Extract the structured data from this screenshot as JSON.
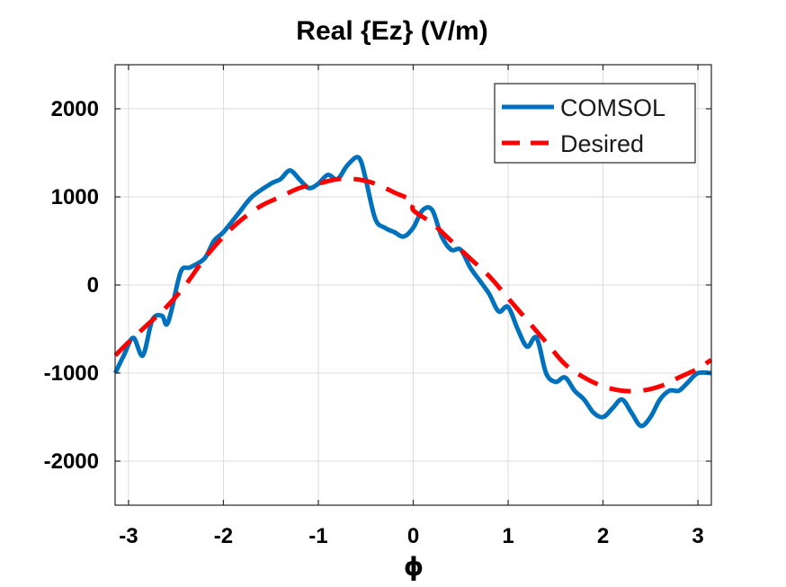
{
  "chart_data": {
    "type": "line",
    "title": "Real {Ez} (V/m)",
    "xlabel": "ϕ",
    "ylabel": "",
    "xlim": [
      -3.14159,
      3.14159
    ],
    "ylim": [
      -2500,
      2500
    ],
    "xticks": [
      -3,
      -2,
      -1,
      0,
      1,
      2,
      3
    ],
    "xtick_labels": [
      "-3",
      "-2",
      "-1",
      "0",
      "1",
      "2",
      "3"
    ],
    "yticks": [
      -2000,
      -1000,
      0,
      1000,
      2000
    ],
    "ytick_labels": [
      "-2000",
      "-1000",
      "0",
      "1000",
      "2000"
    ],
    "grid": true,
    "legend": {
      "placement": "top-right",
      "entries": [
        "COMSOL",
        "Desired"
      ]
    },
    "series": [
      {
        "name": "COMSOL",
        "color": "#0072BD",
        "style": "solid",
        "x": [
          -3.14,
          -3.05,
          -2.95,
          -2.85,
          -2.75,
          -2.65,
          -2.6,
          -2.55,
          -2.45,
          -2.35,
          -2.2,
          -2.1,
          -2.0,
          -1.85,
          -1.7,
          -1.5,
          -1.4,
          -1.3,
          -1.2,
          -1.1,
          -1.0,
          -0.9,
          -0.8,
          -0.7,
          -0.6,
          -0.55,
          -0.5,
          -0.4,
          -0.3,
          -0.2,
          -0.1,
          0.0,
          0.1,
          0.2,
          0.3,
          0.4,
          0.5,
          0.6,
          0.7,
          0.8,
          0.9,
          1.0,
          1.1,
          1.2,
          1.3,
          1.4,
          1.5,
          1.6,
          1.7,
          1.8,
          1.9,
          2.0,
          2.1,
          2.2,
          2.3,
          2.4,
          2.5,
          2.6,
          2.7,
          2.8,
          2.9,
          3.0,
          3.14
        ],
        "y": [
          -1000,
          -800,
          -600,
          -800,
          -400,
          -350,
          -450,
          -300,
          150,
          200,
          300,
          500,
          600,
          800,
          1000,
          1150,
          1200,
          1300,
          1200,
          1100,
          1150,
          1250,
          1200,
          1350,
          1450,
          1400,
          1200,
          750,
          650,
          600,
          550,
          650,
          850,
          850,
          550,
          400,
          400,
          200,
          50,
          -100,
          -300,
          -250,
          -500,
          -700,
          -600,
          -1000,
          -1100,
          -1050,
          -1200,
          -1300,
          -1450,
          -1500,
          -1400,
          -1300,
          -1450,
          -1600,
          -1500,
          -1300,
          -1200,
          -1200,
          -1100,
          -1000,
          -1000
        ]
      },
      {
        "name": "Desired",
        "color": "#FF0000",
        "style": "dashed",
        "x": [
          -3.14,
          -3.0,
          -2.8,
          -2.6,
          -2.4,
          -2.2,
          -2.0,
          -1.8,
          -1.6,
          -1.4,
          -1.2,
          -1.0,
          -0.8,
          -0.6,
          -0.4,
          -0.2,
          -0.001,
          0.0,
          0.2,
          0.4,
          0.6,
          0.8,
          1.0,
          1.2,
          1.4,
          1.6,
          1.8,
          2.0,
          2.2,
          2.4,
          2.6,
          2.8,
          3.0,
          3.14
        ],
        "y": [
          -800,
          -650,
          -450,
          -250,
          0,
          300,
          550,
          750,
          900,
          1000,
          1100,
          1150,
          1200,
          1200,
          1150,
          1050,
          950,
          850,
          700,
          500,
          300,
          100,
          -150,
          -400,
          -650,
          -900,
          -1050,
          -1150,
          -1200,
          -1200,
          -1150,
          -1050,
          -950,
          -850
        ]
      }
    ]
  }
}
